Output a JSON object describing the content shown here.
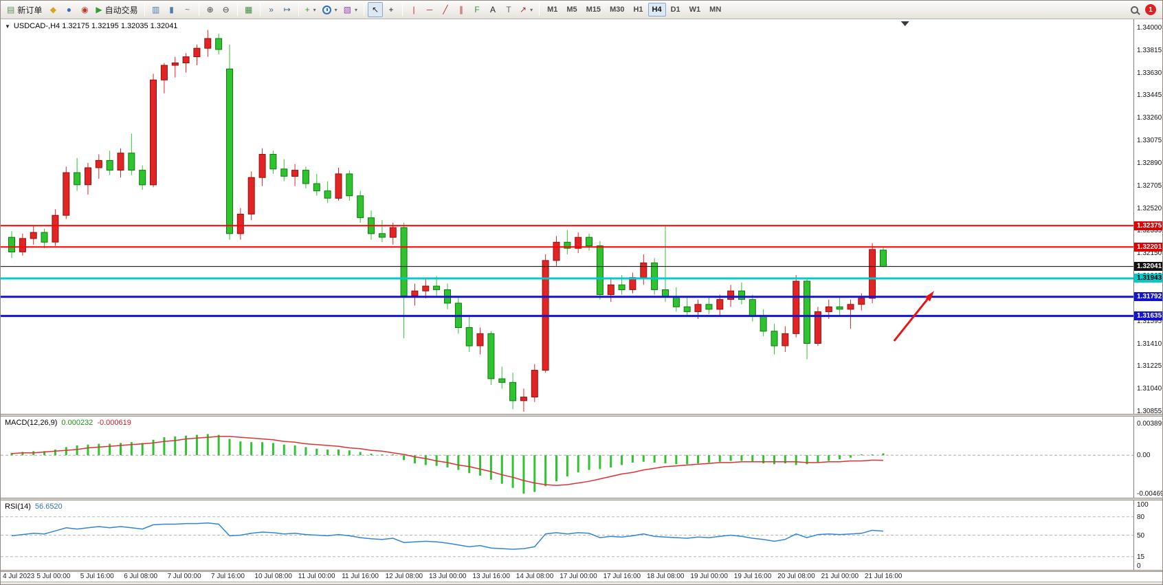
{
  "toolbar": {
    "caret_glyph": "▾",
    "groups": [
      {
        "name": "trade",
        "items": [
          {
            "name": "new-order-button",
            "glyph": "▤",
            "glyph_color": "#5b8f5b",
            "label": "新订单"
          },
          {
            "name": "mql5-icon",
            "glyph": "◆",
            "glyph_color": "#d9a514"
          },
          {
            "name": "community-icon",
            "glyph": "●",
            "glyph_color": "#2f6fbf"
          },
          {
            "name": "market-icon",
            "glyph": "◉",
            "glyph_color": "#c0392b"
          },
          {
            "name": "autotrading-button",
            "glyph": "▶",
            "glyph_color": "#2e9e2e",
            "label": "自动交易"
          }
        ]
      },
      {
        "name": "chart-type",
        "items": [
          {
            "name": "bar-chart-icon",
            "glyph": "▥",
            "glyph_color": "#4d7ea8"
          },
          {
            "name": "candlestick-icon",
            "glyph": "▮",
            "glyph_color": "#4d7ea8"
          },
          {
            "name": "line-chart-icon",
            "glyph": "~",
            "glyph_color": "#4d7ea8"
          }
        ]
      },
      {
        "name": "zoom",
        "items": [
          {
            "name": "zoom-in-icon",
            "glyph": "⊕",
            "glyph_color": "#444444"
          },
          {
            "name": "zoom-out-icon",
            "glyph": "⊖",
            "glyph_color": "#444444"
          }
        ]
      },
      {
        "name": "windows",
        "items": [
          {
            "name": "tile-windows-icon",
            "glyph": "▦",
            "glyph_color": "#3e8e3e"
          }
        ]
      },
      {
        "name": "scroll",
        "items": [
          {
            "name": "auto-scroll-icon",
            "glyph": "»",
            "glyph_color": "#446688"
          },
          {
            "name": "chart-shift-icon",
            "glyph": "↦",
            "glyph_color": "#446688"
          }
        ]
      },
      {
        "name": "insert",
        "items": [
          {
            "name": "indicators-button",
            "glyph": "+",
            "glyph_color": "#2e9e2e",
            "caret": true
          },
          {
            "name": "periods-button",
            "type": "clock",
            "caret": true
          },
          {
            "name": "templates-button",
            "glyph": "▧",
            "glyph_color": "#8e44ad",
            "caret": true
          }
        ]
      },
      {
        "name": "pointer",
        "items": [
          {
            "name": "cursor-icon",
            "glyph": "↖",
            "glyph_color": "#222222",
            "active": true
          },
          {
            "name": "crosshair-icon",
            "glyph": "+",
            "glyph_color": "#222222"
          }
        ]
      },
      {
        "name": "objects",
        "items": [
          {
            "name": "vertical-line-icon",
            "glyph": "|",
            "glyph_color": "#b03030"
          },
          {
            "name": "horizontal-line-icon",
            "glyph": "─",
            "glyph_color": "#b03030"
          },
          {
            "name": "trendline-icon",
            "glyph": "╱",
            "glyph_color": "#b03030"
          },
          {
            "name": "channel-icon",
            "glyph": "∥",
            "glyph_color": "#b03030"
          },
          {
            "name": "fibonacci-icon",
            "glyph": "F",
            "glyph_color": "#3e8e3e"
          },
          {
            "name": "text-icon",
            "glyph": "A",
            "glyph_color": "#222222"
          },
          {
            "name": "text-label-icon",
            "glyph": "T",
            "glyph_color": "#666666"
          },
          {
            "name": "arrows-icon",
            "glyph": "↗",
            "glyph_color": "#b03030",
            "caret": true
          }
        ]
      },
      {
        "name": "timeframes",
        "items": [
          {
            "name": "tf-m1",
            "type": "tf",
            "label": "M1"
          },
          {
            "name": "tf-m5",
            "type": "tf",
            "label": "M5"
          },
          {
            "name": "tf-m15",
            "type": "tf",
            "label": "M15"
          },
          {
            "name": "tf-m30",
            "type": "tf",
            "label": "M30"
          },
          {
            "name": "tf-h1",
            "type": "tf",
            "label": "H1"
          },
          {
            "name": "tf-h4",
            "type": "tf",
            "label": "H4",
            "active": true
          },
          {
            "name": "tf-d1",
            "type": "tf",
            "label": "D1"
          },
          {
            "name": "tf-w1",
            "type": "tf",
            "label": "W1"
          },
          {
            "name": "tf-mn",
            "type": "tf",
            "label": "MN"
          }
        ]
      }
    ],
    "right": [
      {
        "name": "search-icon",
        "type": "magnifier"
      },
      {
        "name": "notification-badge",
        "type": "badge",
        "label": "1"
      }
    ]
  },
  "chart": {
    "collapse_glyph": "▼",
    "header_text": "USDCAD-,H4  1.32175 1.32195 1.32035 1.32041"
  },
  "indicators": {
    "macd": {
      "name": "MACD(12,26,9)",
      "main_value": "0.000232",
      "signal_value": "-0.000619"
    },
    "rsi": {
      "name": "RSI(14)",
      "value": "56.6520"
    }
  },
  "status_bar": {
    "text": ""
  },
  "chart_data": {
    "type": "candlestick",
    "symbol": "USDCAD",
    "timeframe": "H4",
    "last_ohlc": {
      "open": 1.32175,
      "high": 1.32195,
      "low": 1.32035,
      "close": 1.32041
    },
    "price_axis": {
      "max": 1.34,
      "min": 1.30855,
      "tick": 0.00185
    },
    "label_every": 4,
    "time_labels": [
      "4 Jul 2023",
      "5 Jul 00:00",
      "5 Jul 16:00",
      "6 Jul 08:00",
      "7 Jul 00:00",
      "7 Jul 16:00",
      "10 Jul 08:00",
      "11 Jul 00:00",
      "11 Jul 16:00",
      "12 Jul 08:00",
      "13 Jul 00:00",
      "13 Jul 16:00",
      "14 Jul 08:00",
      "17 Jul 00:00",
      "17 Jul 16:00",
      "18 Jul 08:00",
      "19 Jul 00:00",
      "19 Jul 16:00",
      "20 Jul 08:00",
      "21 Jul 00:00",
      "21 Jul 16:00"
    ],
    "ohlc": [
      [
        1.3228,
        1.3233,
        1.3211,
        1.3216
      ],
      [
        1.3216,
        1.3231,
        1.3213,
        1.3227
      ],
      [
        1.3227,
        1.3237,
        1.3222,
        1.3232
      ],
      [
        1.3232,
        1.3235,
        1.3219,
        1.3224
      ],
      [
        1.3224,
        1.3251,
        1.3221,
        1.3246
      ],
      [
        1.3246,
        1.3286,
        1.3243,
        1.3281
      ],
      [
        1.3281,
        1.3293,
        1.3266,
        1.3271
      ],
      [
        1.3271,
        1.3289,
        1.3263,
        1.3285
      ],
      [
        1.3285,
        1.3296,
        1.3276,
        1.3291
      ],
      [
        1.3291,
        1.3299,
        1.3279,
        1.3283
      ],
      [
        1.3283,
        1.3301,
        1.3277,
        1.3297
      ],
      [
        1.3297,
        1.3313,
        1.3279,
        1.3283
      ],
      [
        1.3283,
        1.3287,
        1.3267,
        1.3271
      ],
      [
        1.3271,
        1.3362,
        1.3269,
        1.3357
      ],
      [
        1.3357,
        1.3371,
        1.3346,
        1.3369
      ],
      [
        1.3369,
        1.3376,
        1.3359,
        1.3371
      ],
      [
        1.3371,
        1.3379,
        1.3363,
        1.3376
      ],
      [
        1.3376,
        1.3386,
        1.3369,
        1.3383
      ],
      [
        1.3383,
        1.3398,
        1.3376,
        1.3391
      ],
      [
        1.3391,
        1.3395,
        1.3378,
        1.3382
      ],
      [
        1.3366,
        1.3386,
        1.3226,
        1.3231
      ],
      [
        1.3231,
        1.3252,
        1.3226,
        1.3247
      ],
      [
        1.3247,
        1.3282,
        1.3242,
        1.3277
      ],
      [
        1.3277,
        1.3301,
        1.327,
        1.3296
      ],
      [
        1.3296,
        1.3299,
        1.328,
        1.3284
      ],
      [
        1.3284,
        1.3292,
        1.3274,
        1.3278
      ],
      [
        1.3278,
        1.3288,
        1.327,
        1.3283
      ],
      [
        1.3283,
        1.3286,
        1.3268,
        1.3272
      ],
      [
        1.3272,
        1.328,
        1.3262,
        1.3266
      ],
      [
        1.3266,
        1.3274,
        1.3256,
        1.326
      ],
      [
        1.326,
        1.3285,
        1.3258,
        1.328
      ],
      [
        1.328,
        1.3283,
        1.3258,
        1.3262
      ],
      [
        1.3262,
        1.3266,
        1.324,
        1.3244
      ],
      [
        1.3244,
        1.325,
        1.3226,
        1.3231
      ],
      [
        1.3231,
        1.3242,
        1.3224,
        1.3228
      ],
      [
        1.3228,
        1.324,
        1.3222,
        1.3236
      ],
      [
        1.3236,
        1.324,
        1.3145,
        1.318
      ],
      [
        1.318,
        1.319,
        1.3172,
        1.3184
      ],
      [
        1.3184,
        1.3194,
        1.3178,
        1.3188
      ],
      [
        1.3188,
        1.3196,
        1.318,
        1.3185
      ],
      [
        1.3185,
        1.319,
        1.3169,
        1.3174
      ],
      [
        1.3174,
        1.3179,
        1.3149,
        1.3154
      ],
      [
        1.3154,
        1.3164,
        1.3134,
        1.3139
      ],
      [
        1.3139,
        1.3154,
        1.3132,
        1.3149
      ],
      [
        1.3149,
        1.3151,
        1.3107,
        1.3112
      ],
      [
        1.3112,
        1.3122,
        1.3104,
        1.3109
      ],
      [
        1.3109,
        1.3117,
        1.3087,
        1.3094
      ],
      [
        1.3094,
        1.3104,
        1.3085,
        1.3097
      ],
      [
        1.3097,
        1.3124,
        1.3093,
        1.3119
      ],
      [
        1.3119,
        1.3214,
        1.3117,
        1.3209
      ],
      [
        1.3209,
        1.3229,
        1.3204,
        1.3224
      ],
      [
        1.3224,
        1.3234,
        1.3214,
        1.3219
      ],
      [
        1.3219,
        1.3232,
        1.3215,
        1.3228
      ],
      [
        1.3228,
        1.3231,
        1.3217,
        1.3221
      ],
      [
        1.3221,
        1.3225,
        1.3177,
        1.3181
      ],
      [
        1.3181,
        1.3194,
        1.3175,
        1.3189
      ],
      [
        1.3189,
        1.3197,
        1.3181,
        1.3185
      ],
      [
        1.3185,
        1.3199,
        1.3182,
        1.3195
      ],
      [
        1.3195,
        1.3214,
        1.3189,
        1.3207
      ],
      [
        1.3207,
        1.3211,
        1.3181,
        1.3185
      ],
      [
        1.3185,
        1.3238,
        1.3175,
        1.3179
      ],
      [
        1.3179,
        1.3187,
        1.3167,
        1.3171
      ],
      [
        1.3171,
        1.3179,
        1.3163,
        1.3167
      ],
      [
        1.3167,
        1.3177,
        1.3161,
        1.3173
      ],
      [
        1.3173,
        1.3179,
        1.3165,
        1.3169
      ],
      [
        1.3169,
        1.3181,
        1.3164,
        1.3177
      ],
      [
        1.3177,
        1.3189,
        1.3171,
        1.3184
      ],
      [
        1.3184,
        1.3191,
        1.3173,
        1.3177
      ],
      [
        1.3177,
        1.3181,
        1.3159,
        1.3163
      ],
      [
        1.3163,
        1.3169,
        1.3147,
        1.3151
      ],
      [
        1.3151,
        1.3157,
        1.3132,
        1.3139
      ],
      [
        1.3139,
        1.3155,
        1.3134,
        1.3149
      ],
      [
        1.3149,
        1.3197,
        1.3146,
        1.3192
      ],
      [
        1.3192,
        1.3195,
        1.3128,
        1.3141
      ],
      [
        1.3141,
        1.3171,
        1.3139,
        1.3167
      ],
      [
        1.3167,
        1.3177,
        1.3161,
        1.3171
      ],
      [
        1.3171,
        1.3179,
        1.3164,
        1.3169
      ],
      [
        1.3169,
        1.3177,
        1.3153,
        1.3173
      ],
      [
        1.3173,
        1.3182,
        1.3168,
        1.3178
      ],
      [
        1.3178,
        1.3223,
        1.3174,
        1.3218
      ],
      [
        1.32175,
        1.32195,
        1.32035,
        1.32041
      ]
    ],
    "hlines": [
      {
        "price": 1.32375,
        "color": "#ff0000",
        "width": 2,
        "badge": "1.32375",
        "badge_bg": "#e00000",
        "badge_fg": "#ffffff"
      },
      {
        "price": 1.32201,
        "color": "#ff0000",
        "width": 2,
        "badge": "1.32201",
        "badge_bg": "#e00000",
        "badge_fg": "#ffffff"
      },
      {
        "price": 1.32041,
        "color": "#000000",
        "width": 1,
        "badge": "1.32041",
        "badge_bg": "#111111",
        "badge_fg": "#ffffff"
      },
      {
        "price": 1.31943,
        "color": "#00cccc",
        "width": 3,
        "badge": "1.31943",
        "badge_bg": "#00cccc",
        "badge_fg": "#000000"
      },
      {
        "price": 1.31792,
        "color": "#1414cc",
        "width": 3,
        "badge": "1.31792",
        "badge_bg": "#1414cc",
        "badge_fg": "#ffffff"
      },
      {
        "price": 1.31635,
        "color": "#1414cc",
        "width": 3,
        "badge": "1.31635",
        "badge_bg": "#1414cc",
        "badge_fg": "#ffffff"
      }
    ],
    "arrow": {
      "from": {
        "bar": 81,
        "price": 1.3143
      },
      "to": {
        "bar": 84.4,
        "price": 1.3181
      },
      "color": "#e81414"
    },
    "shift_marker_bar": 82,
    "macd": {
      "axis_max": 0.003895,
      "axis_min": -0.004699,
      "axis_labels": [
        "0.003895",
        "0.00",
        "-0.004699"
      ],
      "histogram": [
        0.0003,
        0.0004,
        0.0005,
        0.0005,
        0.0007,
        0.001,
        0.0012,
        0.0013,
        0.0014,
        0.0014,
        0.0015,
        0.0016,
        0.0015,
        0.0019,
        0.0022,
        0.0023,
        0.0024,
        0.0025,
        0.0026,
        0.0025,
        0.002,
        0.0017,
        0.0016,
        0.0016,
        0.0015,
        0.0013,
        0.0012,
        0.001,
        0.0008,
        0.0007,
        0.0007,
        0.0006,
        0.0004,
        0.0002,
        0.0,
        -0.0001,
        -0.0006,
        -0.001,
        -0.0012,
        -0.0013,
        -0.0015,
        -0.0018,
        -0.0022,
        -0.0025,
        -0.003,
        -0.0035,
        -0.004,
        -0.0047,
        -0.0045,
        -0.0038,
        -0.0032,
        -0.0026,
        -0.0021,
        -0.0018,
        -0.0017,
        -0.0015,
        -0.0012,
        -0.0009,
        -0.0008,
        -0.0009,
        -0.001,
        -0.0011,
        -0.0011,
        -0.001,
        -0.0009,
        -0.0008,
        -0.0007,
        -0.0007,
        -0.0008,
        -0.001,
        -0.0011,
        -0.001,
        -0.0012,
        -0.0011,
        -0.0009,
        -0.0007,
        -0.0005,
        -0.0003,
        -0.0001,
        0.0001,
        0.000232
      ],
      "signal": [
        0.0002,
        0.0003,
        0.0003,
        0.0004,
        0.0005,
        0.0006,
        0.0007,
        0.0009,
        0.001,
        0.0011,
        0.0012,
        0.0013,
        0.0014,
        0.0015,
        0.0017,
        0.0018,
        0.002,
        0.0021,
        0.0022,
        0.0023,
        0.0023,
        0.0022,
        0.0021,
        0.002,
        0.0019,
        0.0017,
        0.0016,
        0.0014,
        0.0013,
        0.0012,
        0.0011,
        0.0009,
        0.0008,
        0.0006,
        0.0005,
        0.0003,
        0.0001,
        -0.0002,
        -0.0004,
        -0.0007,
        -0.0009,
        -0.0012,
        -0.0014,
        -0.0017,
        -0.002,
        -0.0024,
        -0.0027,
        -0.0031,
        -0.0034,
        -0.0036,
        -0.0037,
        -0.0036,
        -0.0034,
        -0.0032,
        -0.0029,
        -0.0026,
        -0.0023,
        -0.0021,
        -0.0018,
        -0.0016,
        -0.0014,
        -0.0013,
        -0.0012,
        -0.0011,
        -0.001,
        -0.0009,
        -0.0009,
        -0.0008,
        -0.0008,
        -0.0008,
        -0.0008,
        -0.0008,
        -0.0008,
        -0.0009,
        -0.0009,
        -0.0008,
        -0.0008,
        -0.0007,
        -0.0007,
        -0.0006,
        -0.000619
      ]
    },
    "rsi": {
      "axis_labels": [
        "100",
        "80",
        "50",
        "15",
        "0"
      ],
      "dashed_levels": [
        80,
        50,
        15
      ],
      "values": [
        49,
        51,
        53,
        52,
        57,
        62,
        60,
        62,
        64,
        62,
        64,
        62,
        60,
        67,
        68,
        68,
        69,
        69,
        70,
        68,
        49,
        50,
        53,
        55,
        54,
        52,
        53,
        51,
        50,
        49,
        51,
        49,
        46,
        44,
        43,
        45,
        38,
        39,
        40,
        39,
        37,
        34,
        31,
        33,
        29,
        28,
        27,
        28,
        31,
        52,
        54,
        52,
        54,
        53,
        46,
        48,
        47,
        49,
        52,
        48,
        47,
        46,
        45,
        47,
        46,
        48,
        50,
        48,
        45,
        43,
        40,
        43,
        52,
        46,
        51,
        52,
        51,
        52,
        53,
        58,
        56.65
      ]
    },
    "colors": {
      "bull": "#e32424",
      "bull_edge": "#8f1010",
      "bear": "#2fc42f",
      "bear_edge": "#0e7a0e",
      "macd_hist": "#2fc42f",
      "macd_signal": "#e03030",
      "rsi": "#2f86d5"
    }
  }
}
